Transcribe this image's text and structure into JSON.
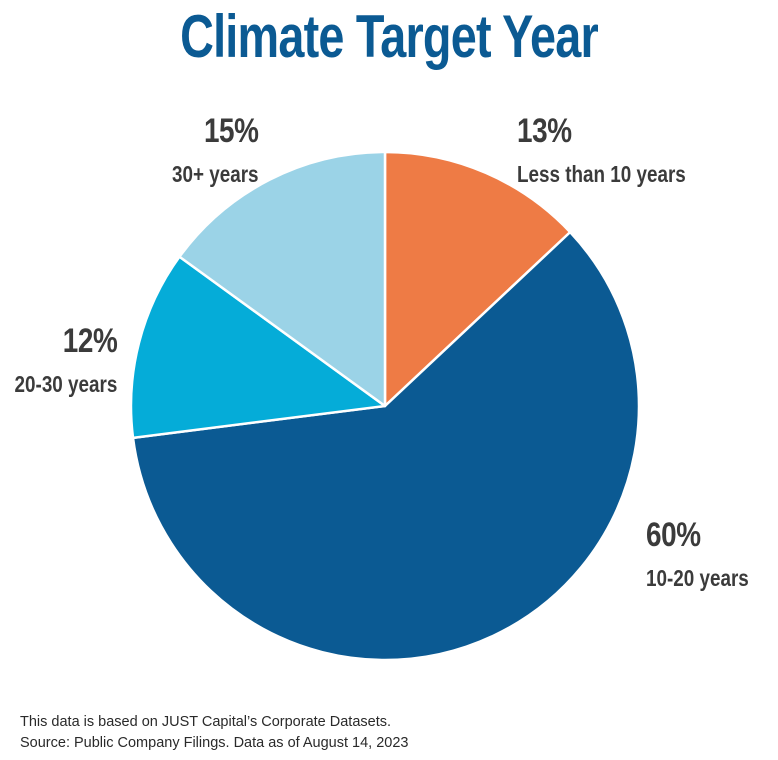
{
  "chart_data": {
    "type": "pie",
    "title": "Climate Target Year",
    "slices": [
      {
        "label": "Less than 10 years",
        "value": 13,
        "value_label": "13%",
        "color": "#ee7b45"
      },
      {
        "label": "10-20 years",
        "value": 60,
        "value_label": "60%",
        "color": "#0b5a93"
      },
      {
        "label": "20-30 years",
        "value": 12,
        "value_label": "12%",
        "color": "#05acd8"
      },
      {
        "label": "30+ years",
        "value": 15,
        "value_label": "15%",
        "color": "#9bd3e7"
      }
    ],
    "start_angle": "12 o'clock",
    "direction": "clockwise"
  },
  "footnote": {
    "line1": "This data is based on JUST Capital’s Corporate Datasets.",
    "line2": "Source: Public Company Filings. Data as of August 14, 2023"
  }
}
